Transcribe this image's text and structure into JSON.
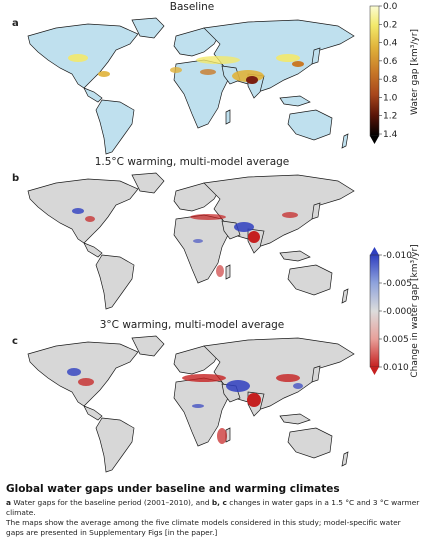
{
  "panels": [
    {
      "label": "a",
      "title": "Baseline"
    },
    {
      "label": "b",
      "title": "1.5°C warming, multi-model average"
    },
    {
      "label": "c",
      "title": "3°C warming, multi-model average"
    }
  ],
  "colorbar_baseline": {
    "label": "Water gap [km³/yr]",
    "ticks": [
      "0.0",
      "0.2",
      "0.4",
      "0.6",
      "0.8",
      "1.0",
      "1.2",
      "1.4"
    ],
    "colors": [
      "#fbfcd4",
      "#f3e96a",
      "#e0b23a",
      "#c97a28",
      "#a8461c",
      "#7a1f10",
      "#3d0b05",
      "#000000"
    ]
  },
  "colorbar_change": {
    "label": "Change in water gap [km³/yr]",
    "ticks": [
      "-0.010",
      "-0.005",
      "-0.000",
      "0.005",
      "0.010"
    ],
    "colors": [
      "#3040c0",
      "#8fa3dc",
      "#dcdcdc",
      "#e8a09a",
      "#c52020"
    ]
  },
  "caption": {
    "title": "Global water gaps under baseline and warming climates",
    "line1_a": "a",
    "line1_text1": " Water gaps for the baseline period (2001–2010), and ",
    "line1_bc": "b, c",
    "line1_text2": " changes in water gaps in a 1.5 °C and 3 °C warmer climate.",
    "line2": "The maps show the average among the five climate models considered in this study; model-specific water gaps are presented in Supplementary Figs [in the paper.]"
  },
  "colors": {
    "land_baseline": "#bfe0ee",
    "land_change": "#d7d7d7",
    "outline": "#1a1a1a"
  }
}
